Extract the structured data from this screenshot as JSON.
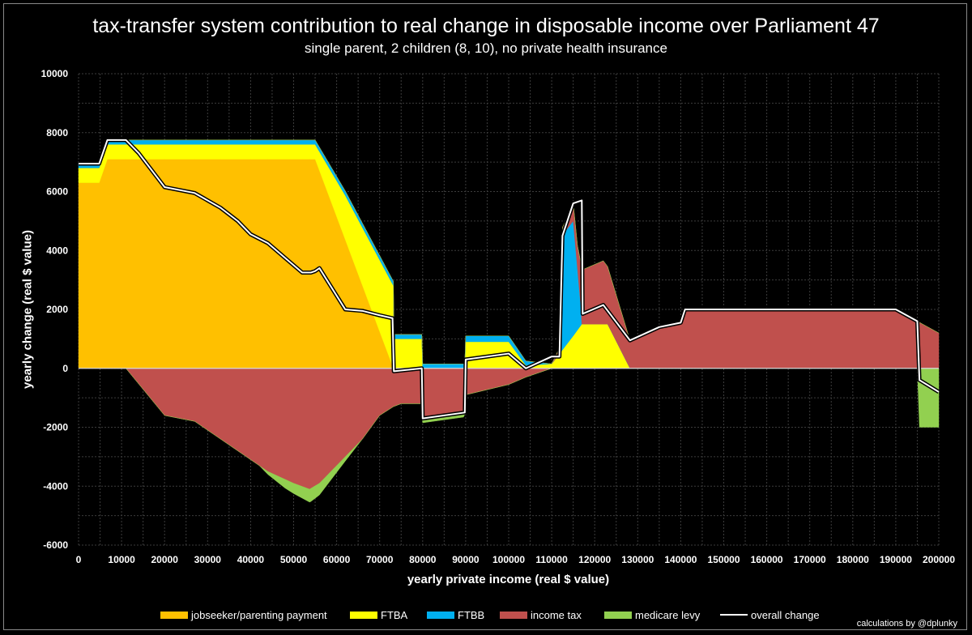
{
  "chart_data": {
    "type": "area",
    "title": "tax-transfer system contribution to real change in disposable income over Parliament 47",
    "subtitle": "single parent, 2 children (8, 10), no private health insurance",
    "xlabel": "yearly private income (real $ value)",
    "ylabel": "yearly change (real $ value)",
    "xlim": [
      0,
      200000
    ],
    "ylim": [
      -6000,
      10000
    ],
    "x_ticks": [
      "0",
      "10000",
      "20000",
      "30000",
      "40000",
      "50000",
      "60000",
      "70000",
      "80000",
      "90000",
      "100000",
      "110000",
      "120000",
      "130000",
      "140000",
      "150000",
      "160000",
      "170000",
      "180000",
      "190000",
      "200000"
    ],
    "y_ticks": [
      "10000",
      "8000",
      "6000",
      "4000",
      "2000",
      "0",
      "-2000",
      "-4000",
      "-6000"
    ],
    "grid": true,
    "legend_position": "bottom",
    "stacking": "positive and negative components stacked separately from zero",
    "series": [
      {
        "name": "jobseeker/parenting payment",
        "color": "#ffc000",
        "points": [
          [
            0,
            6300
          ],
          [
            4800,
            6300
          ],
          [
            6700,
            7100
          ],
          [
            55000,
            7100
          ],
          [
            73200,
            0
          ],
          [
            200000,
            0
          ]
        ]
      },
      {
        "name": "FTBA",
        "color": "#ffff00",
        "points": [
          [
            0,
            500
          ],
          [
            4800,
            500
          ],
          [
            6700,
            500
          ],
          [
            11000,
            500
          ],
          [
            55000,
            500
          ],
          [
            62000,
            1500
          ],
          [
            73200,
            2800
          ],
          [
            73300,
            1000
          ],
          [
            79800,
            1000
          ],
          [
            80000,
            0
          ],
          [
            89800,
            0
          ],
          [
            90000,
            900
          ],
          [
            100000,
            900
          ],
          [
            104000,
            100
          ],
          [
            110000,
            150
          ],
          [
            115000,
            1100
          ],
          [
            117000,
            1500
          ],
          [
            123000,
            1500
          ],
          [
            128200,
            0
          ],
          [
            200000,
            0
          ]
        ]
      },
      {
        "name": "FTBB",
        "color": "#00b0f0",
        "points": [
          [
            0,
            150
          ],
          [
            4800,
            150
          ],
          [
            6700,
            150
          ],
          [
            55000,
            150
          ],
          [
            56000,
            150
          ],
          [
            62000,
            150
          ],
          [
            73200,
            150
          ],
          [
            73300,
            150
          ],
          [
            79800,
            150
          ],
          [
            80000,
            150
          ],
          [
            89800,
            150
          ],
          [
            90000,
            200
          ],
          [
            100000,
            200
          ],
          [
            104000,
            150
          ],
          [
            110000,
            0
          ],
          [
            111800,
            0
          ],
          [
            112500,
            3900
          ],
          [
            115000,
            3900
          ],
          [
            116800,
            600
          ],
          [
            117000,
            0
          ],
          [
            200000,
            0
          ]
        ]
      },
      {
        "name": "income tax",
        "color": "#c0504d",
        "points": [
          [
            0,
            0
          ],
          [
            11000,
            0
          ],
          [
            20000,
            -1600
          ],
          [
            27000,
            -1800
          ],
          [
            37000,
            -2800
          ],
          [
            44000,
            -3500
          ],
          [
            50000,
            -3900
          ],
          [
            53700,
            -4100
          ],
          [
            56000,
            -3900
          ],
          [
            62000,
            -3000
          ],
          [
            66000,
            -2400
          ],
          [
            70000,
            -1600
          ],
          [
            73200,
            -1300
          ],
          [
            75000,
            -1200
          ],
          [
            79500,
            -1200
          ],
          [
            80000,
            -1700
          ],
          [
            89800,
            -1500
          ],
          [
            90000,
            -900
          ],
          [
            100000,
            -550
          ],
          [
            104000,
            -300
          ],
          [
            110000,
            0
          ],
          [
            111800,
            200
          ],
          [
            114000,
            400
          ],
          [
            116000,
            800
          ],
          [
            117200,
            1850
          ],
          [
            122000,
            2150
          ],
          [
            128200,
            950
          ],
          [
            135000,
            1400
          ],
          [
            140000,
            1550
          ],
          [
            141000,
            2000
          ],
          [
            190000,
            2000
          ],
          [
            195000,
            1600
          ],
          [
            200000,
            1200
          ]
        ]
      },
      {
        "name": "medicare levy",
        "color": "#92d050",
        "points": [
          [
            0,
            0
          ],
          [
            42000,
            0
          ],
          [
            44000,
            -100
          ],
          [
            48000,
            -300
          ],
          [
            52000,
            -400
          ],
          [
            54000,
            -450
          ],
          [
            56000,
            -400
          ],
          [
            62000,
            -150
          ],
          [
            66000,
            0
          ],
          [
            79500,
            0
          ],
          [
            80000,
            -150
          ],
          [
            89500,
            -150
          ],
          [
            90000,
            0
          ],
          [
            195000,
            0
          ],
          [
            195500,
            -2000
          ],
          [
            200000,
            -2000
          ]
        ]
      },
      {
        "name": "overall change",
        "color": "#ffffff",
        "points": [
          [
            0,
            6950
          ],
          [
            4800,
            6950
          ],
          [
            6700,
            7750
          ],
          [
            11000,
            7750
          ],
          [
            14000,
            7300
          ],
          [
            20000,
            6150
          ],
          [
            27000,
            5950
          ],
          [
            33000,
            5450
          ],
          [
            37000,
            5000
          ],
          [
            40000,
            4550
          ],
          [
            44000,
            4250
          ],
          [
            48000,
            3750
          ],
          [
            52000,
            3250
          ],
          [
            54000,
            3250
          ],
          [
            55000,
            3300
          ],
          [
            56000,
            3400
          ],
          [
            62000,
            2000
          ],
          [
            66000,
            1950
          ],
          [
            70000,
            1800
          ],
          [
            73000,
            1700
          ],
          [
            73300,
            -100
          ],
          [
            79800,
            0
          ],
          [
            80000,
            -1700
          ],
          [
            89800,
            -1500
          ],
          [
            90000,
            300
          ],
          [
            100000,
            500
          ],
          [
            104000,
            0
          ],
          [
            110000,
            400
          ],
          [
            111800,
            400
          ],
          [
            112500,
            4500
          ],
          [
            115000,
            5600
          ],
          [
            117000,
            5700
          ],
          [
            117200,
            1850
          ],
          [
            122000,
            2150
          ],
          [
            128200,
            950
          ],
          [
            135000,
            1400
          ],
          [
            140000,
            1550
          ],
          [
            141000,
            2000
          ],
          [
            190000,
            2000
          ],
          [
            195000,
            1600
          ],
          [
            195500,
            -400
          ],
          [
            200000,
            -800
          ]
        ]
      }
    ]
  },
  "footer": {
    "credit": "calculations by @dplunky"
  }
}
